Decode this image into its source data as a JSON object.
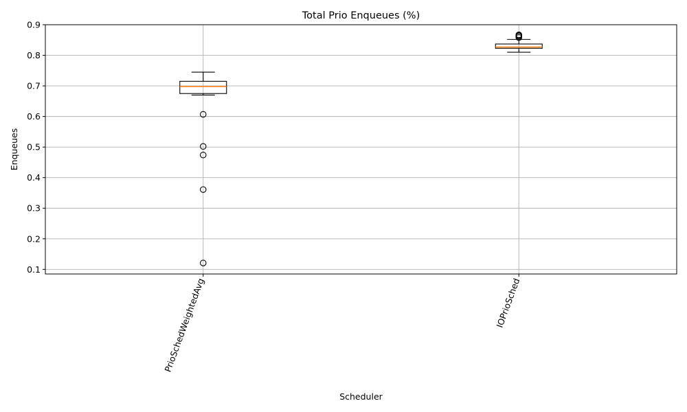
{
  "chart_data": {
    "type": "box",
    "title": "Total Prio Enqueues (%)",
    "xlabel": "Scheduler",
    "ylabel": "Enqueues",
    "ylim": [
      0.085,
      0.9
    ],
    "yticks": [
      "0.1",
      "0.2",
      "0.3",
      "0.4",
      "0.5",
      "0.6",
      "0.7",
      "0.8",
      "0.9"
    ],
    "ytick_values": [
      0.1,
      0.2,
      0.3,
      0.4,
      0.5,
      0.6,
      0.7,
      0.8,
      0.9
    ],
    "grid": true,
    "xtick_rotation_deg": 70,
    "categories": [
      "PrioSchedWeightedAvg",
      "IOPrioSched"
    ],
    "boxes": [
      {
        "name": "PrioSchedWeightedAvg",
        "whisker_low": 0.67,
        "q1": 0.675,
        "median": 0.698,
        "q3": 0.715,
        "whisker_high": 0.745,
        "fliers": [
          0.607,
          0.502,
          0.474,
          0.361,
          0.121
        ]
      },
      {
        "name": "IOPrioSched",
        "whisker_low": 0.81,
        "q1": 0.823,
        "median": 0.827,
        "q3": 0.837,
        "whisker_high": 0.852,
        "fliers": [
          0.858,
          0.862,
          0.865,
          0.867
        ]
      }
    ],
    "colors": {
      "box": "#000000",
      "median": "#ff7f0e",
      "grid": "#b0b0b0"
    }
  }
}
